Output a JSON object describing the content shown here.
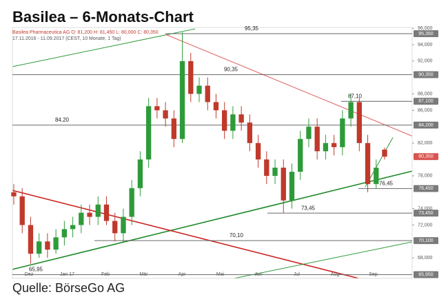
{
  "chart_data": {
    "type": "candlestick",
    "title": "Basilea – 6-Monats-Chart",
    "subtitle": "Basilea Pharmaceutica AG  O: 81,200  H: 81,450  L: 80,000  C: 80,350",
    "period": "17.11.2016 - 11.09.2017  (CEST, 10 Monate, 1 Tag)",
    "source": "Quelle: BörseGo AG",
    "categories": [
      "Dez",
      "Jan 17",
      "Feb",
      "Mär",
      "Apr",
      "Mai",
      "Jun",
      "Jul",
      "Aug",
      "Sep"
    ],
    "candles": {
      "open": [
        76,
        75.5,
        72,
        68.5,
        70,
        69,
        70.5,
        71.5,
        72,
        73.5,
        73,
        74.5,
        72.5,
        71,
        73,
        76.5,
        80,
        86.5,
        86,
        85,
        82.5,
        92,
        88,
        89,
        87,
        86,
        83.5,
        85.5,
        84.5,
        82,
        80,
        78,
        79,
        75,
        78.5,
        82.5,
        84,
        81,
        82,
        81.5,
        85,
        87,
        82,
        77,
        81.2
      ],
      "high": [
        77,
        76.5,
        73,
        71,
        71,
        71.5,
        72.5,
        73,
        74.5,
        74.5,
        75.5,
        75.5,
        73.5,
        74,
        77.5,
        81,
        87.5,
        87.5,
        87,
        86,
        95.5,
        93,
        90,
        90,
        88,
        87,
        86.5,
        86.5,
        85.5,
        83,
        81,
        80,
        80,
        79.5,
        83.5,
        85,
        85,
        83,
        83,
        86,
        88,
        87.5,
        83,
        80,
        81.45
      ],
      "low": [
        74.5,
        71,
        67.3,
        68,
        68,
        68.5,
        69.5,
        70.5,
        71,
        72,
        72,
        72,
        70,
        70,
        72,
        75.5,
        79,
        85,
        84,
        81.5,
        82,
        87,
        87,
        86,
        85,
        82.5,
        82.5,
        83.5,
        81,
        79,
        77,
        77,
        73.5,
        74,
        77.5,
        81.5,
        80,
        80,
        80.5,
        80.5,
        84,
        81,
        76,
        76.5,
        80
      ],
      "close": [
        75.5,
        72,
        68.5,
        70,
        69,
        70.5,
        71.5,
        72,
        73.5,
        73,
        74.5,
        72.5,
        71,
        73,
        76.5,
        80,
        86.5,
        86,
        85,
        82.5,
        92,
        88,
        89,
        87,
        86,
        83.5,
        85.5,
        84.5,
        82,
        80,
        78,
        79,
        75,
        78.5,
        82.5,
        84,
        81,
        82,
        81.5,
        85,
        87,
        82,
        77,
        79,
        80.35
      ]
    },
    "up_color": "#2e9b3a",
    "down_color": "#c0392b",
    "ylim": [
      65.5,
      96.1
    ],
    "yticks": [
      {
        "value": 68,
        "label": "68,000"
      },
      {
        "value": 72,
        "label": "72,000"
      },
      {
        "value": 74,
        "label": "74,000"
      },
      {
        "value": 78,
        "label": "78,000"
      },
      {
        "value": 82,
        "label": "82,000"
      },
      {
        "value": 86,
        "label": "86,000"
      },
      {
        "value": 88,
        "label": "88,000"
      },
      {
        "value": 92,
        "label": "92,000"
      },
      {
        "value": 94,
        "label": "94,000"
      },
      {
        "value": 96,
        "label": "96,000"
      }
    ],
    "levels": [
      {
        "value": 95.35,
        "label": "95,350",
        "annotation": "95,35"
      },
      {
        "value": 90.35,
        "label": "90,350",
        "annotation": "90,35"
      },
      {
        "value": 87.1,
        "label": "87,100",
        "annotation": "87,10"
      },
      {
        "value": 84.2,
        "label": "84,200",
        "annotation": "84,20"
      },
      {
        "value": 76.45,
        "label": "76,450",
        "annotation": "76,45"
      },
      {
        "value": 73.45,
        "label": "73,450",
        "annotation": "73,45"
      },
      {
        "value": 70.1,
        "label": "70,100",
        "annotation": "70,10"
      },
      {
        "value": 65.95,
        "label": "65,950",
        "annotation": "65,95"
      }
    ],
    "price_tag": {
      "value": 80.35,
      "label": "80,350",
      "color": "#d9534f"
    }
  }
}
